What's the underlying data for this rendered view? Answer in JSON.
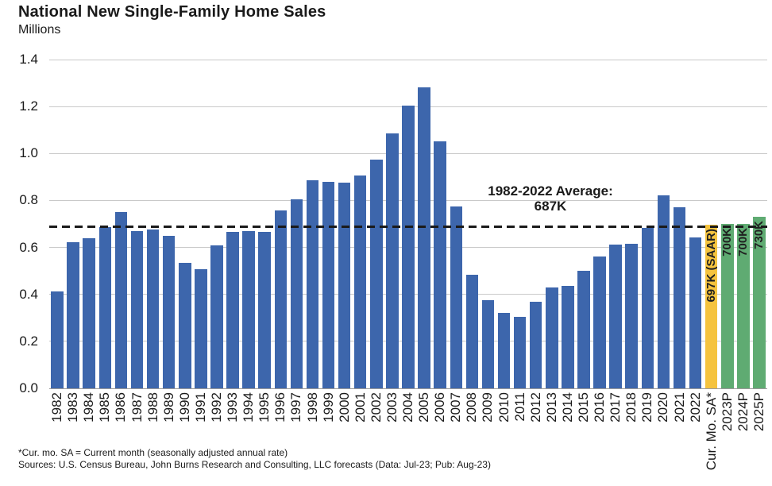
{
  "header": {
    "title": "National New Single-Family Home Sales",
    "units_label": "Millions"
  },
  "footnotes": {
    "line1": "*Cur. mo. SA = Current month (seasonally adjusted annual rate)",
    "line2": "Sources: U.S. Census Bureau, John Burns Research and Consulting, LLC forecasts (Data: Jul-23; Pub: Aug-23)"
  },
  "colors": {
    "bar_history": "#3D66AC",
    "bar_current": "#F5C33E",
    "bar_forecast": "#5FAB72",
    "average_line": "#1A1A1A",
    "gridline": "#C9C9C9",
    "baseline": "#9B9B9B",
    "tick_text": "#1A1A1A",
    "bar_label_text": "#1F1F1F"
  },
  "chart_data": {
    "type": "bar",
    "title": "National New Single-Family Home Sales",
    "ylabel": "Millions",
    "xlabel": "",
    "ylim": [
      0,
      1.4
    ],
    "ytick_labels": [
      "0.0",
      "0.2",
      "0.4",
      "0.6",
      "0.8",
      "1.0",
      "1.2",
      "1.4"
    ],
    "grid": "horizontal",
    "legend_position": "none",
    "categories": [
      "1982",
      "1983",
      "1984",
      "1985",
      "1986",
      "1987",
      "1988",
      "1989",
      "1990",
      "1991",
      "1992",
      "1993",
      "1994",
      "1995",
      "1996",
      "1997",
      "1998",
      "1999",
      "2000",
      "2001",
      "2002",
      "2003",
      "2004",
      "2005",
      "2006",
      "2007",
      "2008",
      "2009",
      "2010",
      "2011",
      "2012",
      "2013",
      "2014",
      "2015",
      "2016",
      "2017",
      "2018",
      "2019",
      "2020",
      "2021",
      "2022",
      "Cur. Mo. SA*",
      "2023P",
      "2024P",
      "2025P"
    ],
    "values": [
      0.412,
      0.623,
      0.639,
      0.688,
      0.75,
      0.671,
      0.676,
      0.65,
      0.534,
      0.509,
      0.61,
      0.666,
      0.67,
      0.667,
      0.757,
      0.804,
      0.886,
      0.88,
      0.877,
      0.908,
      0.973,
      1.086,
      1.203,
      1.283,
      1.051,
      0.776,
      0.485,
      0.375,
      0.323,
      0.306,
      0.368,
      0.429,
      0.437,
      0.501,
      0.561,
      0.613,
      0.617,
      0.683,
      0.822,
      0.771,
      0.641,
      0.697,
      0.7,
      0.7,
      0.73
    ],
    "bar_type_default": "history",
    "bar_type_overrides": {
      "41": "current",
      "42": "forecast",
      "43": "forecast",
      "44": "forecast"
    },
    "bar_value_label_overrides": {
      "41": "697K (SAAR)",
      "42": "700K",
      "43": "700K",
      "44": "730K"
    },
    "average_line": {
      "value": 0.687,
      "label_line1": "1982-2022 Average:",
      "label_line2": "687K"
    }
  }
}
